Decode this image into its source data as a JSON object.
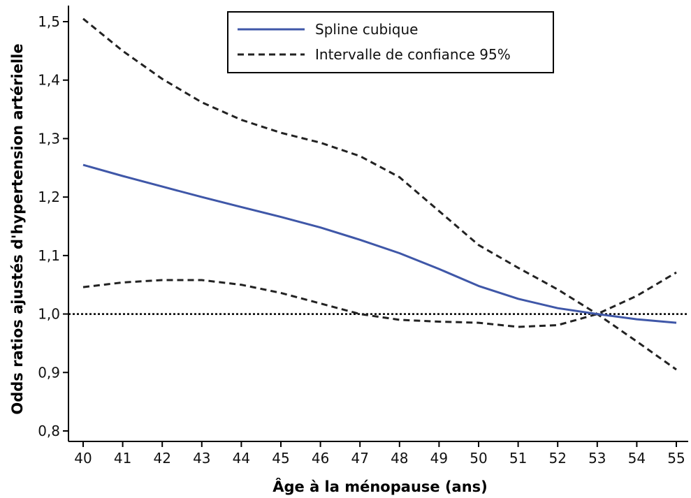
{
  "chart_data": {
    "type": "line",
    "title": "",
    "xlabel": "Âge à la ménopause (ans)",
    "ylabel": "Odds ratios ajustés d'hypertension artérielle",
    "xlim": [
      40,
      55
    ],
    "ylim": [
      0.8,
      1.5
    ],
    "x_ticks": [
      40,
      41,
      42,
      43,
      44,
      45,
      46,
      47,
      48,
      49,
      50,
      51,
      52,
      53,
      54,
      55
    ],
    "x_tick_labels": [
      "40",
      "41",
      "42",
      "43",
      "44",
      "45",
      "46",
      "47",
      "48",
      "49",
      "50",
      "51",
      "52",
      "53",
      "54",
      "55"
    ],
    "y_ticks": [
      0.8,
      0.9,
      1.0,
      1.1,
      1.2,
      1.3,
      1.4,
      1.5
    ],
    "y_tick_labels": [
      "0,8",
      "0,9",
      "1,0",
      "1,1",
      "1,2",
      "1,3",
      "1,4",
      "1,5"
    ],
    "grid": false,
    "legend_position": "top-center",
    "reference_line": {
      "y": 1.0,
      "style": "dotted",
      "color": "#000000"
    },
    "x": [
      40,
      41,
      42,
      43,
      44,
      45,
      46,
      47,
      48,
      49,
      50,
      51,
      52,
      53,
      54,
      55
    ],
    "series": [
      {
        "name": "Spline cubique",
        "style": "solid",
        "color": "#3f57a8",
        "values": [
          1.255,
          1.236,
          1.218,
          1.2,
          1.183,
          1.166,
          1.148,
          1.127,
          1.104,
          1.077,
          1.048,
          1.026,
          1.01,
          1.0,
          0.991,
          0.985
        ]
      },
      {
        "name": "Intervalle de confiance 95%",
        "style": "dashed",
        "color": "#222222",
        "values": [
          1.505,
          1.45,
          1.402,
          1.362,
          1.332,
          1.31,
          1.293,
          1.27,
          1.234,
          1.176,
          1.118,
          1.079,
          1.042,
          1.0,
          0.953,
          0.905
        ]
      },
      {
        "name": "",
        "style": "dashed",
        "color": "#222222",
        "values": [
          1.046,
          1.054,
          1.058,
          1.058,
          1.05,
          1.036,
          1.018,
          1.0,
          0.99,
          0.987,
          0.985,
          0.978,
          0.981,
          1.0,
          1.031,
          1.071
        ]
      }
    ]
  }
}
